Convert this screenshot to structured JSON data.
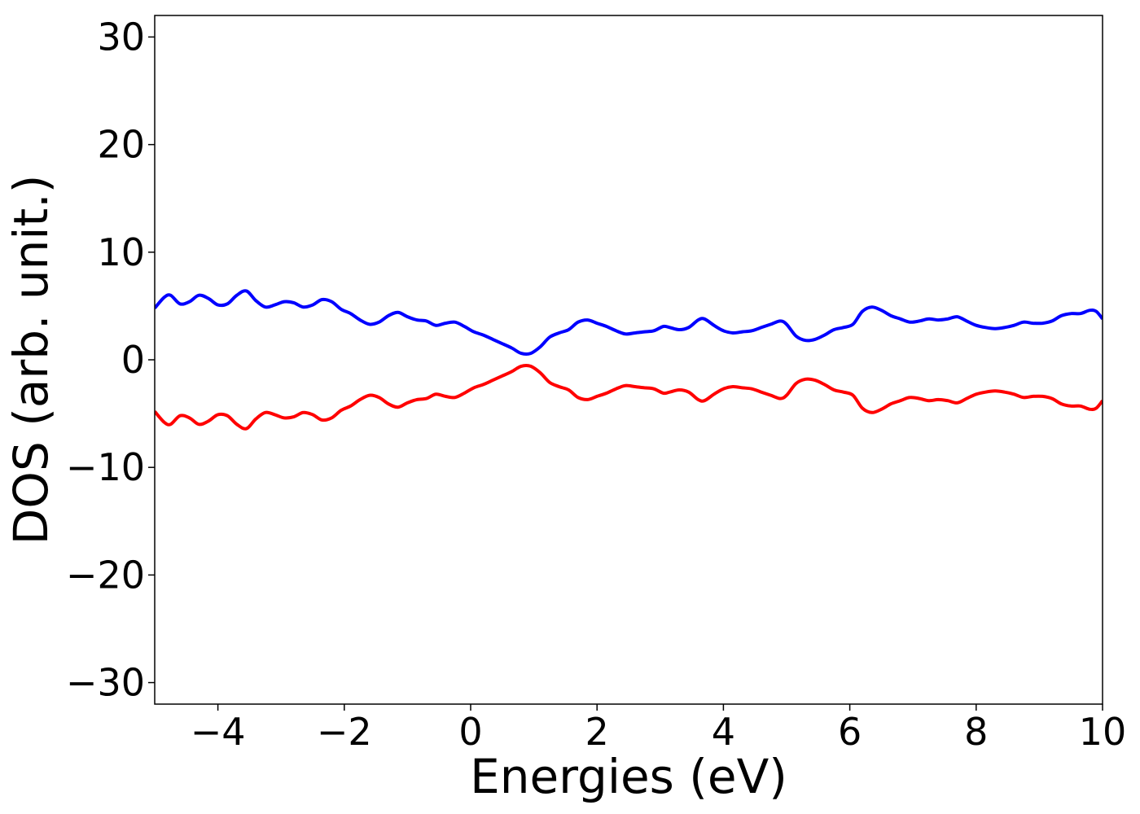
{
  "chart_data": {
    "type": "line",
    "xlabel": "Energies (eV)",
    "ylabel": "DOS (arb. unit.)",
    "xlim": [
      -5,
      10
    ],
    "ylim": [
      -32,
      32
    ],
    "xticks": [
      -4,
      -2,
      0,
      2,
      4,
      6,
      8,
      10
    ],
    "yticks": [
      -30,
      -20,
      -10,
      0,
      10,
      20,
      30
    ],
    "xtick_labels": [
      "−4",
      "−2",
      "0",
      "2",
      "4",
      "6",
      "8",
      "10"
    ],
    "ytick_labels": [
      "−30",
      "−20",
      "−10",
      "0",
      "10",
      "20",
      "30"
    ],
    "grid": false,
    "series": [
      {
        "color": "#0000ff",
        "x": [
          -5.0,
          -4.85,
          -4.75,
          -4.6,
          -4.45,
          -4.3,
          -4.15,
          -4.0,
          -3.85,
          -3.7,
          -3.55,
          -3.4,
          -3.25,
          -3.1,
          -2.95,
          -2.8,
          -2.65,
          -2.5,
          -2.35,
          -2.2,
          -2.05,
          -1.9,
          -1.75,
          -1.6,
          -1.45,
          -1.3,
          -1.15,
          -1.0,
          -0.85,
          -0.7,
          -0.55,
          -0.4,
          -0.25,
          -0.1,
          0.05,
          0.2,
          0.35,
          0.5,
          0.65,
          0.8,
          0.95,
          1.1,
          1.25,
          1.4,
          1.55,
          1.7,
          1.85,
          2.0,
          2.15,
          2.3,
          2.45,
          2.6,
          2.75,
          2.9,
          3.05,
          3.15,
          3.3,
          3.45,
          3.6,
          3.7,
          3.85,
          4.0,
          4.15,
          4.3,
          4.45,
          4.6,
          4.75,
          4.9,
          5.0,
          5.15,
          5.3,
          5.45,
          5.6,
          5.75,
          5.9,
          6.05,
          6.2,
          6.35,
          6.5,
          6.65,
          6.8,
          6.95,
          7.1,
          7.25,
          7.4,
          7.55,
          7.7,
          7.85,
          8.0,
          8.15,
          8.3,
          8.45,
          8.6,
          8.75,
          8.9,
          9.05,
          9.2,
          9.35,
          9.5,
          9.65,
          9.8,
          9.9,
          10.0
        ],
        "y": [
          4.8,
          5.8,
          6.0,
          5.2,
          5.4,
          6.0,
          5.7,
          5.1,
          5.2,
          6.0,
          6.4,
          5.5,
          4.9,
          5.1,
          5.4,
          5.3,
          4.9,
          5.1,
          5.6,
          5.4,
          4.7,
          4.3,
          3.7,
          3.3,
          3.5,
          4.1,
          4.4,
          4.0,
          3.7,
          3.6,
          3.2,
          3.4,
          3.5,
          3.1,
          2.6,
          2.3,
          1.9,
          1.5,
          1.1,
          0.6,
          0.6,
          1.2,
          2.1,
          2.5,
          2.8,
          3.5,
          3.7,
          3.4,
          3.1,
          2.7,
          2.4,
          2.5,
          2.6,
          2.7,
          3.1,
          3.0,
          2.8,
          3.0,
          3.7,
          3.8,
          3.2,
          2.7,
          2.5,
          2.6,
          2.7,
          3.0,
          3.3,
          3.6,
          3.3,
          2.2,
          1.8,
          1.9,
          2.3,
          2.8,
          3.0,
          3.3,
          4.5,
          4.9,
          4.6,
          4.1,
          3.8,
          3.5,
          3.6,
          3.8,
          3.7,
          3.8,
          4.0,
          3.6,
          3.2,
          3.0,
          2.9,
          3.0,
          3.2,
          3.5,
          3.4,
          3.4,
          3.6,
          4.1,
          4.3,
          4.3,
          4.6,
          4.5,
          3.8
        ]
      },
      {
        "color": "#ff0000",
        "x": [
          -5.0,
          -4.85,
          -4.75,
          -4.6,
          -4.45,
          -4.3,
          -4.15,
          -4.0,
          -3.85,
          -3.7,
          -3.55,
          -3.4,
          -3.25,
          -3.1,
          -2.95,
          -2.8,
          -2.65,
          -2.5,
          -2.35,
          -2.2,
          -2.05,
          -1.9,
          -1.75,
          -1.6,
          -1.45,
          -1.3,
          -1.15,
          -1.0,
          -0.85,
          -0.7,
          -0.55,
          -0.4,
          -0.25,
          -0.1,
          0.05,
          0.2,
          0.35,
          0.5,
          0.65,
          0.8,
          0.95,
          1.1,
          1.25,
          1.4,
          1.55,
          1.7,
          1.85,
          2.0,
          2.15,
          2.3,
          2.45,
          2.6,
          2.75,
          2.9,
          3.05,
          3.15,
          3.3,
          3.45,
          3.6,
          3.7,
          3.85,
          4.0,
          4.15,
          4.3,
          4.45,
          4.6,
          4.75,
          4.9,
          5.0,
          5.15,
          5.3,
          5.45,
          5.6,
          5.75,
          5.9,
          6.05,
          6.2,
          6.35,
          6.5,
          6.65,
          6.8,
          6.95,
          7.1,
          7.25,
          7.4,
          7.55,
          7.7,
          7.85,
          8.0,
          8.15,
          8.3,
          8.45,
          8.6,
          8.75,
          8.9,
          9.05,
          9.2,
          9.35,
          9.5,
          9.65,
          9.8,
          9.9,
          10.0
        ],
        "y": [
          -4.8,
          -5.8,
          -6.0,
          -5.2,
          -5.4,
          -6.0,
          -5.7,
          -5.1,
          -5.2,
          -6.0,
          -6.4,
          -5.5,
          -4.9,
          -5.1,
          -5.4,
          -5.3,
          -4.9,
          -5.1,
          -5.6,
          -5.4,
          -4.7,
          -4.3,
          -3.7,
          -3.3,
          -3.5,
          -4.1,
          -4.4,
          -4.0,
          -3.7,
          -3.6,
          -3.2,
          -3.4,
          -3.5,
          -3.1,
          -2.6,
          -2.3,
          -1.9,
          -1.5,
          -1.1,
          -0.6,
          -0.6,
          -1.2,
          -2.1,
          -2.5,
          -2.8,
          -3.5,
          -3.7,
          -3.4,
          -3.1,
          -2.7,
          -2.4,
          -2.5,
          -2.6,
          -2.7,
          -3.1,
          -3.0,
          -2.8,
          -3.0,
          -3.7,
          -3.8,
          -3.2,
          -2.7,
          -2.5,
          -2.6,
          -2.7,
          -3.0,
          -3.3,
          -3.6,
          -3.3,
          -2.2,
          -1.8,
          -1.9,
          -2.3,
          -2.8,
          -3.0,
          -3.3,
          -4.5,
          -4.9,
          -4.6,
          -4.1,
          -3.8,
          -3.5,
          -3.6,
          -3.8,
          -3.7,
          -3.8,
          -4.0,
          -3.6,
          -3.2,
          -3.0,
          -2.9,
          -3.0,
          -3.2,
          -3.5,
          -3.4,
          -3.4,
          -3.6,
          -4.1,
          -4.3,
          -4.3,
          -4.6,
          -4.5,
          -3.8
        ]
      }
    ]
  }
}
